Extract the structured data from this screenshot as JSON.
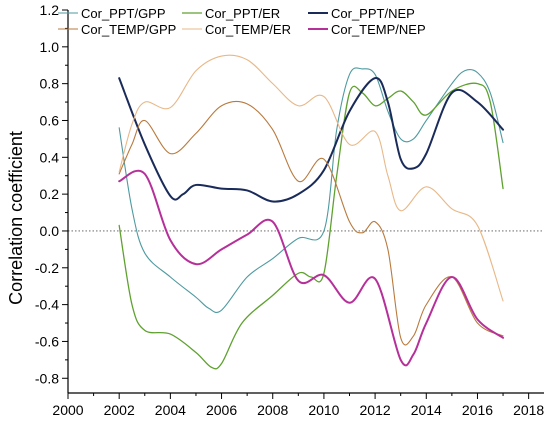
{
  "chart_data": {
    "type": "line",
    "title": "",
    "xlabel": "",
    "ylabel": "Correlation coefficient",
    "xlim": [
      2000,
      2018.6
    ],
    "ylim": [
      -0.88,
      1.2
    ],
    "x_ticks": [
      2000,
      2002,
      2004,
      2006,
      2008,
      2010,
      2012,
      2014,
      2016,
      2018
    ],
    "y_ticks": [
      -0.8,
      -0.6,
      -0.4,
      -0.2,
      0.0,
      0.2,
      0.4,
      0.6,
      0.8,
      1.0,
      1.2
    ],
    "x_tick_labels": [
      "2000",
      "2002",
      "2004",
      "2006",
      "2008",
      "2010",
      "2012",
      "2014",
      "2016",
      "2018"
    ],
    "y_tick_labels": [
      "-0.8",
      "-0.6",
      "-0.4",
      "-0.2",
      "0.0",
      "0.2",
      "0.4",
      "0.6",
      "0.8",
      "1.0",
      "1.2"
    ],
    "reference_line": {
      "y": 0.0,
      "style": "dotted"
    },
    "grid": false,
    "legend": {
      "position": "top",
      "columns": 3
    },
    "series": [
      {
        "name": "Cor_PPT/GPP",
        "color": "#4e9aa0",
        "width": 1.1,
        "points": [
          [
            2002,
            0.56
          ],
          [
            2002.5,
            0.12
          ],
          [
            2003,
            -0.12
          ],
          [
            2004,
            -0.25
          ],
          [
            2005,
            -0.36
          ],
          [
            2005.5,
            -0.42
          ],
          [
            2006,
            -0.43
          ],
          [
            2007,
            -0.25
          ],
          [
            2008,
            -0.15
          ],
          [
            2009,
            -0.04
          ],
          [
            2010,
            0.0
          ],
          [
            2010.5,
            0.55
          ],
          [
            2011,
            0.85
          ],
          [
            2011.5,
            0.88
          ],
          [
            2012,
            0.85
          ],
          [
            2012.5,
            0.65
          ],
          [
            2013,
            0.5
          ],
          [
            2013.5,
            0.5
          ],
          [
            2014,
            0.6
          ],
          [
            2015,
            0.8
          ],
          [
            2015.5,
            0.87
          ],
          [
            2016,
            0.86
          ],
          [
            2016.5,
            0.75
          ],
          [
            2017,
            0.48
          ]
        ]
      },
      {
        "name": "Cor_PPT/ER",
        "color": "#5fa130",
        "width": 1.3,
        "points": [
          [
            2002,
            0.03
          ],
          [
            2002.5,
            -0.4
          ],
          [
            2003,
            -0.54
          ],
          [
            2004,
            -0.56
          ],
          [
            2005,
            -0.66
          ],
          [
            2005.6,
            -0.74
          ],
          [
            2006,
            -0.72
          ],
          [
            2006.8,
            -0.5
          ],
          [
            2008,
            -0.35
          ],
          [
            2009,
            -0.23
          ],
          [
            2009.5,
            -0.25
          ],
          [
            2010,
            -0.23
          ],
          [
            2010.5,
            0.3
          ],
          [
            2011,
            0.75
          ],
          [
            2011.5,
            0.75
          ],
          [
            2012,
            0.68
          ],
          [
            2012.5,
            0.72
          ],
          [
            2013,
            0.76
          ],
          [
            2013.5,
            0.7
          ],
          [
            2014,
            0.63
          ],
          [
            2015,
            0.76
          ],
          [
            2016,
            0.8
          ],
          [
            2016.5,
            0.7
          ],
          [
            2017,
            0.23
          ]
        ]
      },
      {
        "name": "Cor_PPT/NEP",
        "color": "#1a2b5a",
        "width": 2.0,
        "points": [
          [
            2002,
            0.83
          ],
          [
            2003,
            0.47
          ],
          [
            2004,
            0.19
          ],
          [
            2004.5,
            0.2
          ],
          [
            2005,
            0.25
          ],
          [
            2006,
            0.23
          ],
          [
            2007,
            0.22
          ],
          [
            2008,
            0.16
          ],
          [
            2009,
            0.2
          ],
          [
            2010,
            0.33
          ],
          [
            2011,
            0.65
          ],
          [
            2012,
            0.83
          ],
          [
            2012.5,
            0.7
          ],
          [
            2013,
            0.39
          ],
          [
            2013.5,
            0.34
          ],
          [
            2014,
            0.42
          ],
          [
            2015,
            0.75
          ],
          [
            2016,
            0.7
          ],
          [
            2017,
            0.55
          ]
        ]
      },
      {
        "name": "Cor_TEMP/GPP",
        "color": "#b97a3e",
        "width": 1.1,
        "points": [
          [
            2002,
            0.31
          ],
          [
            2002.5,
            0.47
          ],
          [
            2003,
            0.6
          ],
          [
            2004,
            0.42
          ],
          [
            2005,
            0.53
          ],
          [
            2006,
            0.68
          ],
          [
            2007,
            0.69
          ],
          [
            2008,
            0.55
          ],
          [
            2009,
            0.27
          ],
          [
            2010,
            0.39
          ],
          [
            2011,
            0.05
          ],
          [
            2011.5,
            -0.01
          ],
          [
            2012,
            0.05
          ],
          [
            2012.5,
            -0.1
          ],
          [
            2013,
            -0.58
          ],
          [
            2013.5,
            -0.57
          ],
          [
            2014,
            -0.4
          ],
          [
            2015,
            -0.25
          ],
          [
            2016,
            -0.5
          ],
          [
            2017,
            -0.57
          ]
        ]
      },
      {
        "name": "Cor_TEMP/ER",
        "color": "#e8b888",
        "width": 1.1,
        "points": [
          [
            2002,
            0.32
          ],
          [
            2002.5,
            0.58
          ],
          [
            2003,
            0.7
          ],
          [
            2004,
            0.67
          ],
          [
            2005,
            0.87
          ],
          [
            2006,
            0.95
          ],
          [
            2007,
            0.93
          ],
          [
            2008,
            0.8
          ],
          [
            2009,
            0.68
          ],
          [
            2010,
            0.73
          ],
          [
            2011,
            0.47
          ],
          [
            2012,
            0.54
          ],
          [
            2012.5,
            0.3
          ],
          [
            2013,
            0.11
          ],
          [
            2014,
            0.24
          ],
          [
            2015,
            0.12
          ],
          [
            2016,
            0.03
          ],
          [
            2017,
            -0.38
          ]
        ]
      },
      {
        "name": "Cor_TEMP/NEP",
        "color": "#b6309a",
        "width": 2.0,
        "points": [
          [
            2002,
            0.27
          ],
          [
            2003,
            0.31
          ],
          [
            2004,
            -0.05
          ],
          [
            2005,
            -0.18
          ],
          [
            2006,
            -0.1
          ],
          [
            2007,
            -0.02
          ],
          [
            2008,
            0.05
          ],
          [
            2009,
            -0.27
          ],
          [
            2010,
            -0.24
          ],
          [
            2011,
            -0.39
          ],
          [
            2012,
            -0.26
          ],
          [
            2013,
            -0.7
          ],
          [
            2013.5,
            -0.67
          ],
          [
            2014,
            -0.5
          ],
          [
            2015,
            -0.25
          ],
          [
            2016,
            -0.48
          ],
          [
            2017,
            -0.58
          ]
        ]
      }
    ]
  }
}
